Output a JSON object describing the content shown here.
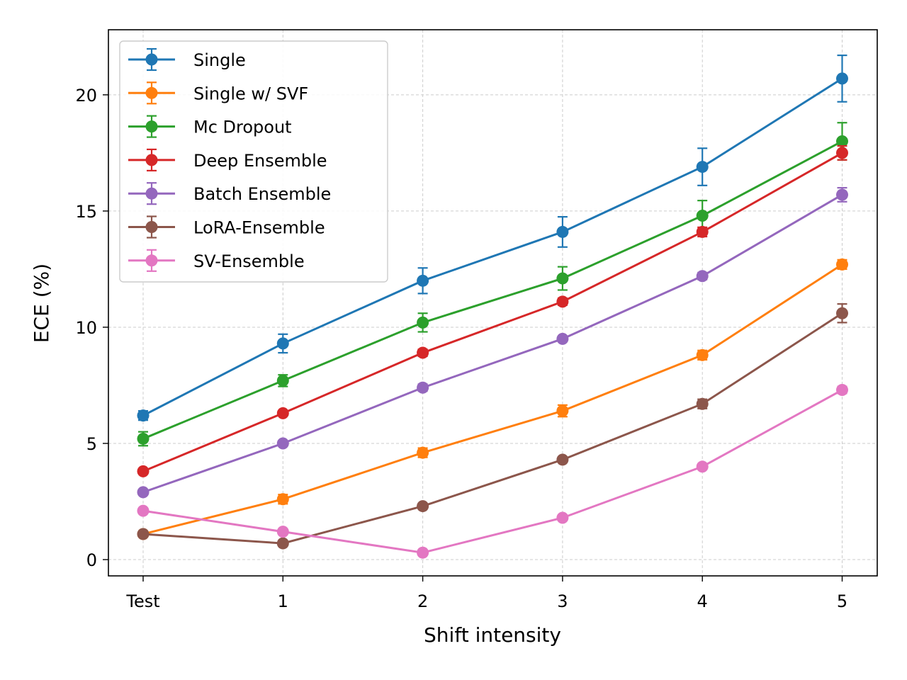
{
  "chart_data": {
    "type": "line",
    "title": "",
    "xlabel": "Shift intensity",
    "ylabel": "ECE (%)",
    "categories": [
      "Test",
      "1",
      "2",
      "3",
      "4",
      "5"
    ],
    "ylim": [
      -0.7,
      22.8
    ],
    "yticks": [
      0,
      5,
      10,
      15,
      20
    ],
    "grid": true,
    "legend_position": "top-left",
    "series": [
      {
        "name": "Single",
        "color": "#1f77b4",
        "values": [
          6.2,
          9.3,
          12.0,
          14.1,
          16.9,
          20.7
        ],
        "errors": [
          0.2,
          0.4,
          0.55,
          0.65,
          0.8,
          1.0
        ]
      },
      {
        "name": "Single w/ SVF",
        "color": "#ff7f0e",
        "values": [
          1.1,
          2.6,
          4.6,
          6.4,
          8.8,
          12.7
        ],
        "errors": [
          0.1,
          0.2,
          0.2,
          0.25,
          0.2,
          0.2
        ]
      },
      {
        "name": "Mc Dropout",
        "color": "#2ca02c",
        "values": [
          5.2,
          7.7,
          10.2,
          12.1,
          14.8,
          18.0
        ],
        "errors": [
          0.3,
          0.25,
          0.4,
          0.5,
          0.65,
          0.8
        ]
      },
      {
        "name": "Deep Ensemble",
        "color": "#d62728",
        "values": [
          3.8,
          6.3,
          8.9,
          11.1,
          14.1,
          17.5
        ],
        "errors": [
          0.1,
          0.1,
          0.15,
          0.15,
          0.2,
          0.3
        ]
      },
      {
        "name": "Batch Ensemble",
        "color": "#9467bd",
        "values": [
          2.9,
          5.0,
          7.4,
          9.5,
          12.2,
          15.7
        ],
        "errors": [
          0.1,
          0.1,
          0.15,
          0.1,
          0.15,
          0.3
        ]
      },
      {
        "name": "LoRA-Ensemble",
        "color": "#8c564b",
        "values": [
          1.1,
          0.7,
          2.3,
          4.3,
          6.7,
          10.6
        ],
        "errors": [
          0.1,
          0.1,
          0.1,
          0.1,
          0.2,
          0.4
        ]
      },
      {
        "name": "SV-Ensemble",
        "color": "#e377c2",
        "values": [
          2.1,
          1.2,
          0.3,
          1.8,
          4.0,
          7.3
        ],
        "errors": [
          0.1,
          0.1,
          0.1,
          0.1,
          0.1,
          0.15
        ]
      }
    ]
  }
}
